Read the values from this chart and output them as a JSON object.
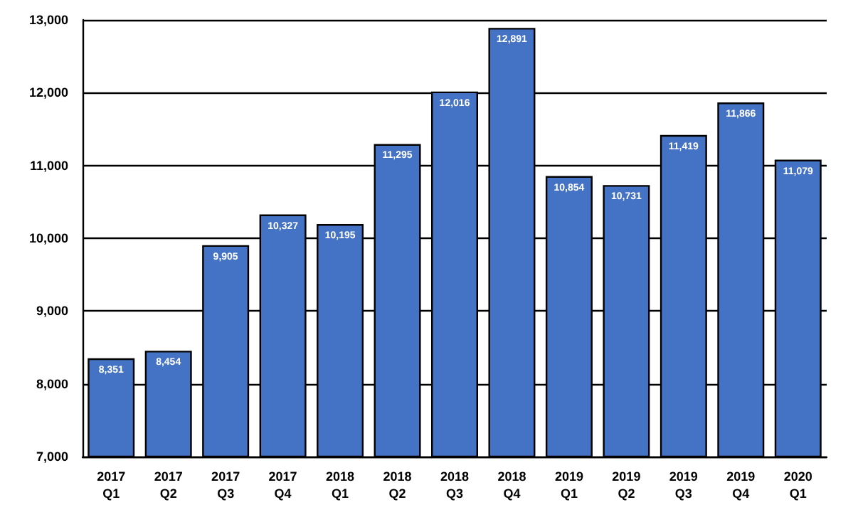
{
  "chart_data": {
    "type": "bar",
    "categories": [
      "2017\nQ1",
      "2017\nQ2",
      "2017\nQ3",
      "2017\nQ4",
      "2018\nQ1",
      "2018\nQ2",
      "2018\nQ3",
      "2018\nQ4",
      "2019\nQ1",
      "2019\nQ2",
      "2019\nQ3",
      "2019\nQ4",
      "2020\nQ1"
    ],
    "values": [
      8351,
      8454,
      9905,
      10327,
      10195,
      11295,
      12016,
      12891,
      10854,
      10731,
      11419,
      11866,
      11079
    ],
    "value_labels": [
      "8,351",
      "8,454",
      "9,905",
      "10,327",
      "10,195",
      "11,295",
      "12,016",
      "12,891",
      "10,854",
      "10,731",
      "11,419",
      "11,866",
      "11,079"
    ],
    "color": "#4472c4",
    "ylim": [
      7000,
      13000
    ],
    "yticks": [
      {
        "value": 7000,
        "label": "7,000"
      },
      {
        "value": 8000,
        "label": "8,000"
      },
      {
        "value": 9000,
        "label": "9,000"
      },
      {
        "value": 10000,
        "label": "10,000"
      },
      {
        "value": 11000,
        "label": "11,000"
      },
      {
        "value": 12000,
        "label": "12,000"
      },
      {
        "value": 13000,
        "label": "13,000"
      }
    ],
    "grid": "y"
  }
}
